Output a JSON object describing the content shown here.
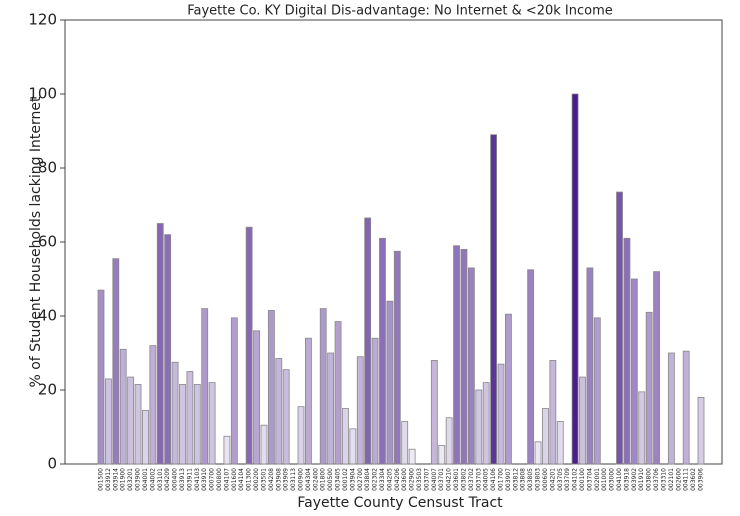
{
  "chart_data": {
    "type": "bar",
    "title": "Fayette Co. KY Digital Dis-advantage: No Internet & <20k Income",
    "x_label": "Fayette County Censust Tract",
    "y_label": "% of Student Households lacking Internet",
    "categories": [
      "001500",
      "003912",
      "003914",
      "001900",
      "003201",
      "003900",
      "004001",
      "004002",
      "003101",
      "004209",
      "000400",
      "003913",
      "003911",
      "004103",
      "003910",
      "000700",
      "000800",
      "004107",
      "001600",
      "004104",
      "001300",
      "000200",
      "003501",
      "004208",
      "003908",
      "003909",
      "003113",
      "000900",
      "004304",
      "002400",
      "001800",
      "000500",
      "003405",
      "000102",
      "003904",
      "002700",
      "003804",
      "002302",
      "003304",
      "004205",
      "004206",
      "003600",
      "002900",
      "003503",
      "003707",
      "004007",
      "003701",
      "004210",
      "003601",
      "003802",
      "003702",
      "003703",
      "004005",
      "004106",
      "001700",
      "003907",
      "003812",
      "003808",
      "003805",
      "003803",
      "000600",
      "004201",
      "003705",
      "003709",
      "004102",
      "000100",
      "003704",
      "002001",
      "001000",
      "003000",
      "004100",
      "003918",
      "003902",
      "001910",
      "003800",
      "003706",
      "003310",
      "002101",
      "002600",
      "004111",
      "003602",
      "003906"
    ],
    "values": [
      47,
      23,
      55.5,
      31,
      23.5,
      21.5,
      14.5,
      32,
      65,
      62,
      27.5,
      21.5,
      25,
      21.5,
      42,
      22,
      0,
      7.5,
      39.5,
      0,
      64,
      36,
      10.5,
      41.5,
      28.5,
      25.5,
      0,
      15.5,
      34,
      0,
      42,
      30,
      38.5,
      15,
      9.5,
      29,
      66.5,
      34,
      61,
      44,
      57.5,
      11.5,
      4,
      0,
      0,
      28,
      5,
      12.5,
      59,
      58,
      53,
      20,
      22,
      89,
      27,
      40.5,
      0,
      0,
      52.5,
      6,
      15,
      28,
      11.5,
      0,
      100,
      23.5,
      53,
      39.5,
      0,
      0,
      73.5,
      61,
      50,
      19.5,
      41,
      52,
      0,
      30,
      0,
      30.5,
      0,
      18
    ],
    "color_scale": [
      "#f4f3f9",
      "#4a1c8c"
    ],
    "ylim": [
      0,
      120
    ],
    "yticks": [
      0,
      20,
      40,
      60,
      80,
      100,
      120
    ]
  }
}
